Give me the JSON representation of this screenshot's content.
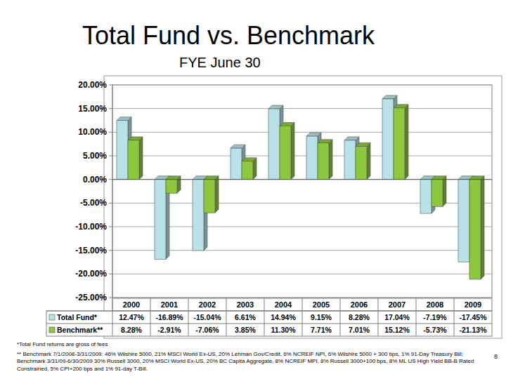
{
  "chart_data": {
    "type": "bar",
    "title": "Total Fund vs. Benchmark",
    "subtitle": "FYE June 30",
    "categories": [
      "2000",
      "2001",
      "2002",
      "2003",
      "2004",
      "2005",
      "2006",
      "2007",
      "2008",
      "2009"
    ],
    "series": [
      {
        "name": "Total Fund*",
        "color": "#b9e2e8",
        "values": [
          12.47,
          -16.89,
          -15.04,
          6.61,
          14.94,
          9.15,
          8.28,
          17.04,
          -7.19,
          -17.45
        ],
        "value_labels": [
          "12.47%",
          "-16.89%",
          "-15.04%",
          "6.61%",
          "14.94%",
          "9.15%",
          "8.28%",
          "17.04%",
          "-7.19%",
          "-17.45%"
        ]
      },
      {
        "name": "Benchmark**",
        "color": "#8dc63f",
        "values": [
          8.28,
          -2.91,
          -7.06,
          3.85,
          11.3,
          7.71,
          7.01,
          15.12,
          -5.73,
          -21.13
        ],
        "value_labels": [
          "8.28%",
          "-2.91%",
          "-7.06%",
          "3.85%",
          "11.30%",
          "7.71%",
          "7.01%",
          "15.12%",
          "-5.73%",
          "-21.13%"
        ]
      }
    ],
    "ylim": [
      -25,
      20
    ],
    "yticks": [
      {
        "value": -25,
        "label": "-25.00%"
      },
      {
        "value": -20,
        "label": "-20.00%"
      },
      {
        "value": -15,
        "label": "-15.00%"
      },
      {
        "value": -10,
        "label": "-10.00%"
      },
      {
        "value": -5,
        "label": "-5.00%"
      },
      {
        "value": 0,
        "label": "0.00%"
      },
      {
        "value": 5,
        "label": "5.00%"
      },
      {
        "value": 10,
        "label": "10.00%"
      },
      {
        "value": 15,
        "label": "15.00%"
      },
      {
        "value": 20,
        "label": "20.00%"
      }
    ],
    "grid": true
  },
  "footnotes": [
    "*Total Fund returns are gross of fees",
    "** Benchmark 7/1/2008-3/31/2009: 46% Wilshire 5000, 21% MSCI World Ex-US, 20% Lehman Gov/Credit, 6% NCREIF NPI, 6% Wilshire 5000 + 300 bps, 1% 91-Day Treasury Bill;  Benchmark 3/31/09-6/30/2009 30% Russell 3000, 20% MSCI World Ex-US, 20% BC Capita Aggregate, 8% NCREIF MPI, 8% Russell 3000+100 bps, 8% ML US High Yield BB-B Rated Constrained, 5% CPI+200 bps and 1% 91-day T-Bill."
  ],
  "page": 8
}
